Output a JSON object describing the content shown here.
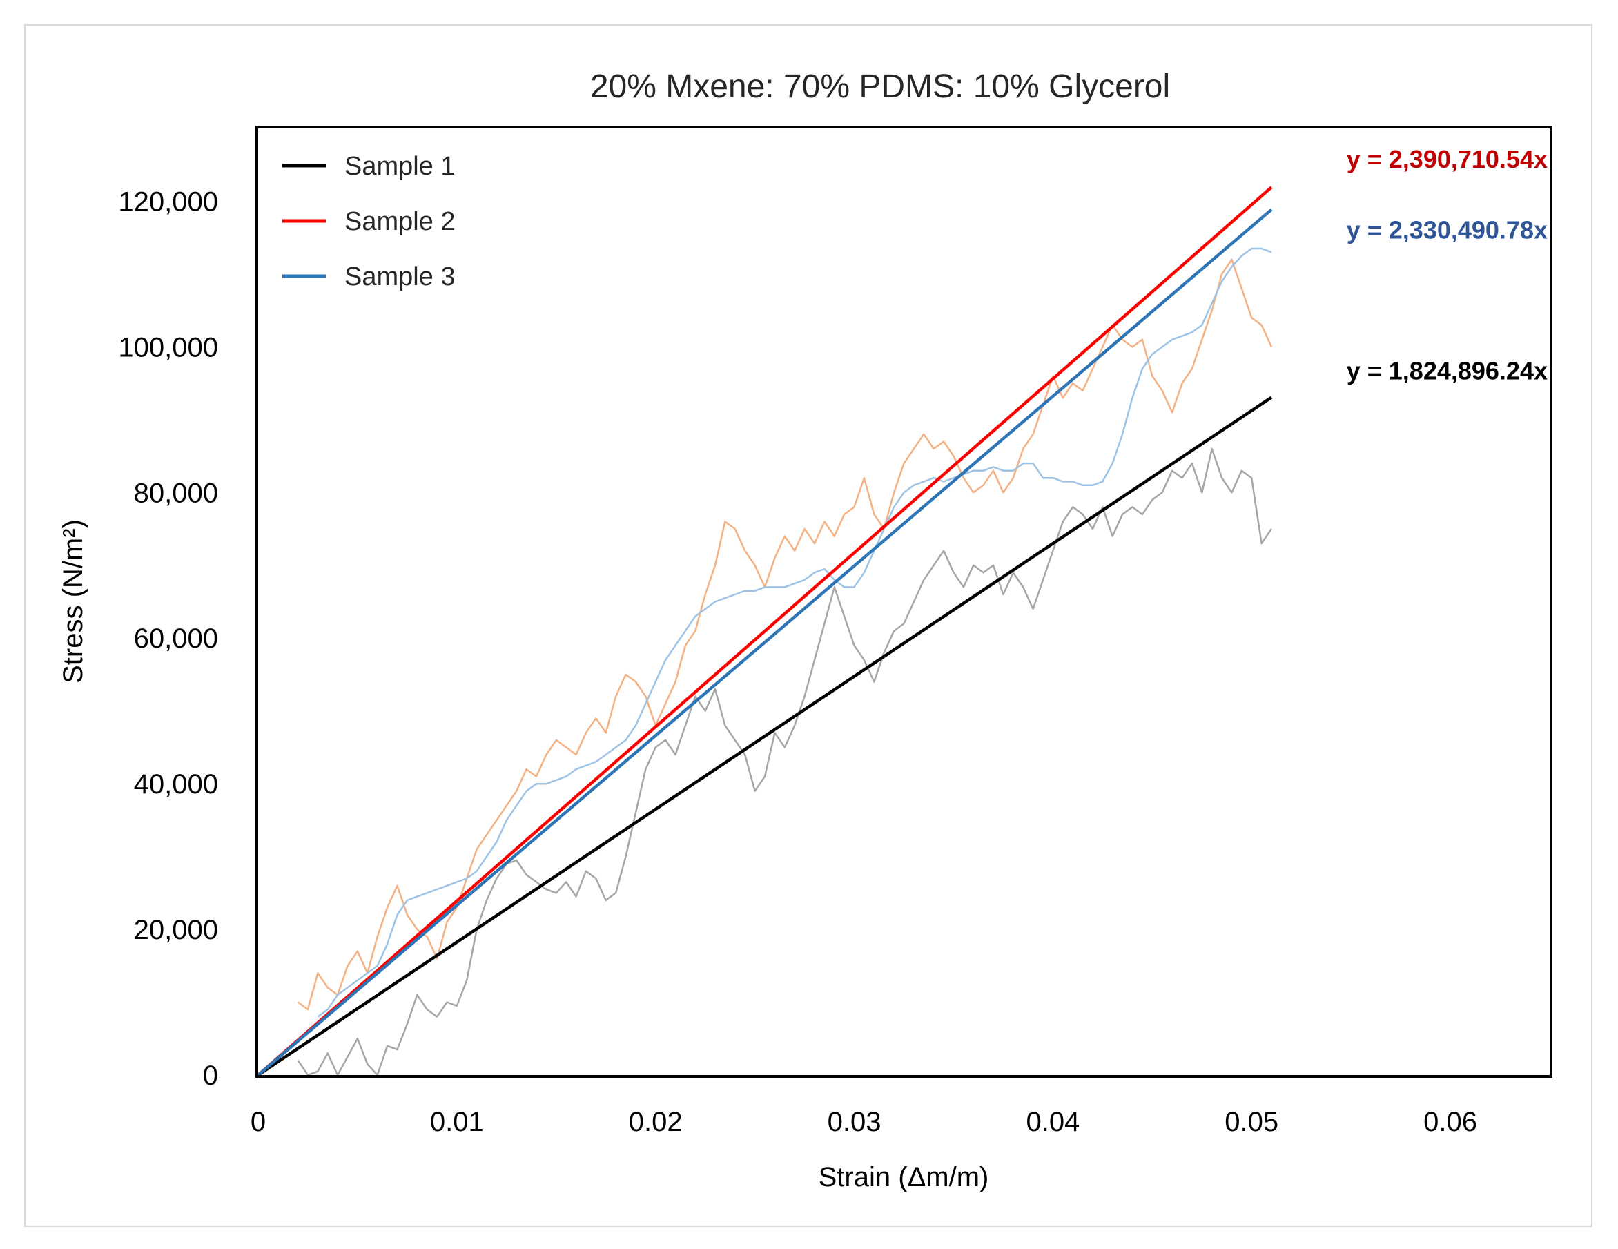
{
  "chart_data": {
    "type": "line",
    "title": "20% Mxene: 70% PDMS: 10% Glycerol",
    "xlabel": "Strain (Δm/m)",
    "ylabel": "Stress (N/m²)",
    "xlim": [
      0,
      0.065
    ],
    "ylim": [
      0,
      130000
    ],
    "x_ticks": [
      0,
      0.01,
      0.02,
      0.03,
      0.04,
      0.05,
      0.06
    ],
    "x_tick_labels": [
      "0",
      "0.01",
      "0.02",
      "0.03",
      "0.04",
      "0.05",
      "0.06"
    ],
    "y_ticks": [
      0,
      20000,
      40000,
      60000,
      80000,
      100000,
      120000
    ],
    "y_tick_labels": [
      "0",
      "20,000",
      "40,000",
      "60,000",
      "80,000",
      "100,000",
      "120,000"
    ],
    "grid": false,
    "legend": {
      "position": "top-left",
      "entries": [
        "Sample 1",
        "Sample 2",
        "Sample 3"
      ]
    },
    "series": [
      {
        "name": "Sample 1",
        "color": "#000000",
        "raw_color": "#a6a6a6",
        "trendline_slope": 1824896.24,
        "trendline_label": "y = 1,824,896.24x",
        "label_color": "#000000",
        "raw": {
          "x": [
            0.002,
            0.0025,
            0.003,
            0.0035,
            0.004,
            0.0045,
            0.005,
            0.0055,
            0.006,
            0.0065,
            0.007,
            0.0075,
            0.008,
            0.0085,
            0.009,
            0.0095,
            0.01,
            0.0105,
            0.011,
            0.0115,
            0.012,
            0.0125,
            0.013,
            0.0135,
            0.014,
            0.0145,
            0.015,
            0.0155,
            0.016,
            0.0165,
            0.017,
            0.0175,
            0.018,
            0.0185,
            0.019,
            0.0195,
            0.02,
            0.0205,
            0.021,
            0.0215,
            0.022,
            0.0225,
            0.023,
            0.0235,
            0.024,
            0.0245,
            0.025,
            0.0255,
            0.026,
            0.0265,
            0.027,
            0.0275,
            0.028,
            0.0285,
            0.029,
            0.0295,
            0.03,
            0.0305,
            0.031,
            0.0315,
            0.032,
            0.0325,
            0.033,
            0.0335,
            0.034,
            0.0345,
            0.035,
            0.0355,
            0.036,
            0.0365,
            0.037,
            0.0375,
            0.038,
            0.0385,
            0.039,
            0.0395,
            0.04,
            0.0405,
            0.041,
            0.0415,
            0.042,
            0.0425,
            0.043,
            0.0435,
            0.044,
            0.0445,
            0.045,
            0.0455,
            0.046,
            0.0465,
            0.047,
            0.0475,
            0.048,
            0.0485,
            0.049,
            0.0495,
            0.05,
            0.0505,
            0.051
          ],
          "y": [
            2000,
            0,
            500,
            3000,
            0,
            2500,
            5000,
            1500,
            0,
            4000,
            3500,
            7000,
            11000,
            9000,
            8000,
            10000,
            9500,
            13000,
            20000,
            24000,
            27000,
            29000,
            29500,
            27500,
            26500,
            25500,
            25000,
            26500,
            24500,
            28000,
            27000,
            24000,
            25000,
            30000,
            36000,
            42000,
            45000,
            46000,
            44000,
            48000,
            52000,
            50000,
            53000,
            48000,
            46000,
            44000,
            39000,
            41000,
            47000,
            45000,
            48000,
            52000,
            57000,
            62000,
            67000,
            63000,
            59000,
            57000,
            54000,
            58000,
            61000,
            62000,
            65000,
            68000,
            70000,
            72000,
            69000,
            67000,
            70000,
            69000,
            70000,
            66000,
            69000,
            67000,
            64000,
            68000,
            72000,
            76000,
            78000,
            77000,
            75000,
            78000,
            74000,
            77000,
            78000,
            77000,
            79000,
            80000,
            83000,
            82000,
            84000,
            80000,
            86000,
            82000,
            80000,
            83000,
            82000,
            73000,
            75000
          ]
        }
      },
      {
        "name": "Sample 2",
        "color": "#ff0000",
        "raw_color": "#f4b183",
        "trendline_slope": 2390710.54,
        "trendline_label": "y = 2,390,710.54x",
        "label_color": "#c00000",
        "raw": {
          "x": [
            0.002,
            0.0025,
            0.003,
            0.0035,
            0.004,
            0.0045,
            0.005,
            0.0055,
            0.006,
            0.0065,
            0.007,
            0.0075,
            0.008,
            0.0085,
            0.009,
            0.0095,
            0.01,
            0.0105,
            0.011,
            0.0115,
            0.012,
            0.0125,
            0.013,
            0.0135,
            0.014,
            0.0145,
            0.015,
            0.0155,
            0.016,
            0.0165,
            0.017,
            0.0175,
            0.018,
            0.0185,
            0.019,
            0.0195,
            0.02,
            0.0205,
            0.021,
            0.0215,
            0.022,
            0.0225,
            0.023,
            0.0235,
            0.024,
            0.0245,
            0.025,
            0.0255,
            0.026,
            0.0265,
            0.027,
            0.0275,
            0.028,
            0.0285,
            0.029,
            0.0295,
            0.03,
            0.0305,
            0.031,
            0.0315,
            0.032,
            0.0325,
            0.033,
            0.0335,
            0.034,
            0.0345,
            0.035,
            0.0355,
            0.036,
            0.0365,
            0.037,
            0.0375,
            0.038,
            0.0385,
            0.039,
            0.0395,
            0.04,
            0.0405,
            0.041,
            0.0415,
            0.042,
            0.0425,
            0.043,
            0.0435,
            0.044,
            0.0445,
            0.045,
            0.0455,
            0.046,
            0.0465,
            0.047,
            0.0475,
            0.048,
            0.0485,
            0.049,
            0.0495,
            0.05,
            0.0505,
            0.051
          ],
          "y": [
            10000,
            9000,
            14000,
            12000,
            11000,
            15000,
            17000,
            14000,
            19000,
            23000,
            26000,
            22000,
            20000,
            19000,
            16000,
            21000,
            23000,
            27000,
            31000,
            33000,
            35000,
            37000,
            39000,
            42000,
            41000,
            44000,
            46000,
            45000,
            44000,
            47000,
            49000,
            47000,
            52000,
            55000,
            54000,
            52000,
            48000,
            51000,
            54000,
            59000,
            61000,
            66000,
            70000,
            76000,
            75000,
            72000,
            70000,
            67000,
            71000,
            74000,
            72000,
            75000,
            73000,
            76000,
            74000,
            77000,
            78000,
            82000,
            77000,
            75000,
            80000,
            84000,
            86000,
            88000,
            86000,
            87000,
            85000,
            82000,
            80000,
            81000,
            83000,
            80000,
            82000,
            86000,
            88000,
            92000,
            96000,
            93000,
            95000,
            94000,
            97000,
            100000,
            103000,
            101000,
            100000,
            101000,
            96000,
            94000,
            91000,
            95000,
            97000,
            101000,
            105000,
            110000,
            112000,
            108000,
            104000,
            103000,
            100000
          ]
        }
      },
      {
        "name": "Sample 3",
        "color": "#2e75b6",
        "raw_color": "#9dc3e6",
        "trendline_slope": 2330490.78,
        "trendline_label": "y = 2,330,490.78x",
        "label_color": "#2f5597",
        "raw": {
          "x": [
            0.003,
            0.0035,
            0.004,
            0.0045,
            0.005,
            0.0055,
            0.006,
            0.0065,
            0.007,
            0.0075,
            0.008,
            0.0085,
            0.009,
            0.0095,
            0.01,
            0.0105,
            0.011,
            0.0115,
            0.012,
            0.0125,
            0.013,
            0.0135,
            0.014,
            0.0145,
            0.015,
            0.0155,
            0.016,
            0.0165,
            0.017,
            0.0175,
            0.018,
            0.0185,
            0.019,
            0.0195,
            0.02,
            0.0205,
            0.021,
            0.0215,
            0.022,
            0.0225,
            0.023,
            0.0235,
            0.024,
            0.0245,
            0.025,
            0.0255,
            0.026,
            0.0265,
            0.027,
            0.0275,
            0.028,
            0.0285,
            0.029,
            0.0295,
            0.03,
            0.0305,
            0.031,
            0.0315,
            0.032,
            0.0325,
            0.033,
            0.0335,
            0.034,
            0.0345,
            0.035,
            0.0355,
            0.036,
            0.0365,
            0.037,
            0.0375,
            0.038,
            0.0385,
            0.039,
            0.0395,
            0.04,
            0.0405,
            0.041,
            0.0415,
            0.042,
            0.0425,
            0.043,
            0.0435,
            0.044,
            0.0445,
            0.045,
            0.0455,
            0.046,
            0.0465,
            0.047,
            0.0475,
            0.048,
            0.0485,
            0.049,
            0.0495,
            0.05,
            0.0505,
            0.051
          ],
          "y": [
            8000,
            9000,
            11000,
            12000,
            13000,
            14000,
            15000,
            18000,
            22000,
            24000,
            24500,
            25000,
            25500,
            26000,
            26500,
            27000,
            28000,
            30000,
            32000,
            35000,
            37000,
            39000,
            40000,
            40000,
            40500,
            41000,
            42000,
            42500,
            43000,
            44000,
            45000,
            46000,
            48000,
            51000,
            54000,
            57000,
            59000,
            61000,
            63000,
            64000,
            65000,
            65500,
            66000,
            66500,
            66500,
            67000,
            67000,
            67000,
            67500,
            68000,
            69000,
            69500,
            68000,
            67000,
            67000,
            69000,
            72000,
            75000,
            78000,
            80000,
            81000,
            81500,
            82000,
            81500,
            82000,
            82500,
            83000,
            83000,
            83500,
            83000,
            83000,
            84000,
            84000,
            82000,
            82000,
            81500,
            81500,
            81000,
            81000,
            81500,
            84000,
            88000,
            93000,
            97000,
            99000,
            100000,
            101000,
            101500,
            102000,
            103000,
            106000,
            109000,
            111000,
            112500,
            113500,
            113500,
            113000
          ]
        }
      }
    ]
  }
}
